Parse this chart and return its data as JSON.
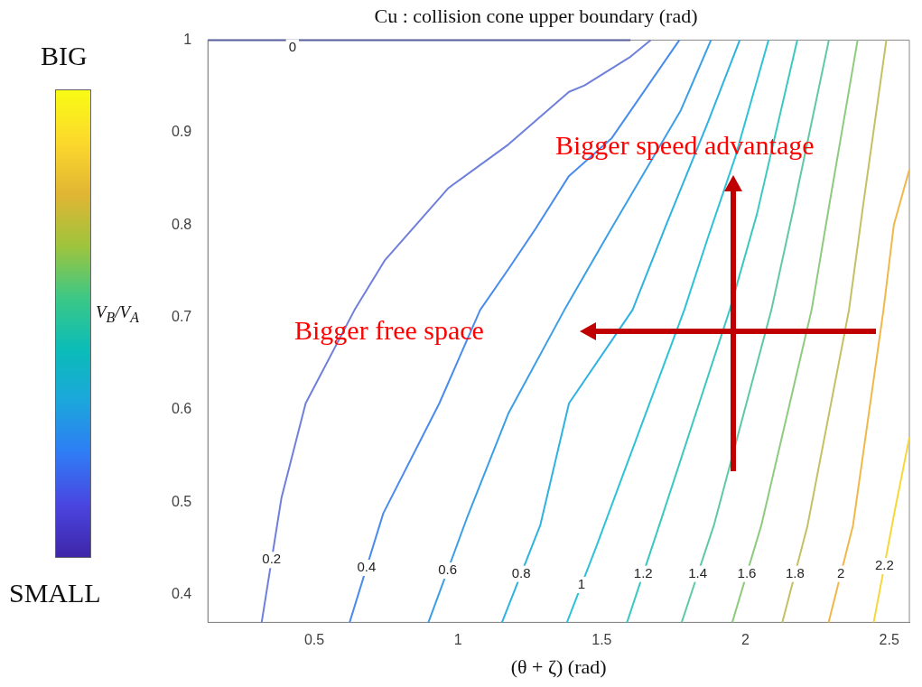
{
  "chart_data": {
    "type": "line",
    "title": "Cu : collision cone upper boundary (rad)",
    "xlabel": "(θ + ζ) (rad)",
    "clabel": "V$_{B}$/V$_{A}$",
    "annotations": [
      "BIG",
      "SMALL",
      "Bigger speed advantage",
      "Bigger free space"
    ],
    "xlim": [
      0.13,
      2.57
    ],
    "ylim": [
      0.37,
      1
    ],
    "xticks": [
      0.5,
      1,
      1.5,
      2,
      2.5
    ],
    "yticks": [
      0.4,
      0.5,
      0.6,
      0.7,
      0.8,
      0.9,
      1
    ],
    "series": [
      {
        "name": "0",
        "color": "#5a5f9e",
        "x": [
          0.13,
          1.6
        ],
        "values": [
          1,
          1
        ]
      },
      {
        "name": "0.2",
        "color": "#6f7fdc",
        "x": [
          0.317,
          0.386,
          0.47,
          0.64,
          0.746,
          0.967,
          1.175,
          1.386,
          1.44,
          1.6,
          1.67
        ],
        "values": [
          0.37,
          0.505,
          0.607,
          0.708,
          0.762,
          0.84,
          0.887,
          0.944,
          0.951,
          0.982,
          1
        ]
      },
      {
        "name": "0.4",
        "color": "#4a8cec",
        "x": [
          0.623,
          0.74,
          0.935,
          1.077,
          1.175,
          1.27,
          1.386,
          1.535,
          1.77
        ],
        "values": [
          0.37,
          0.488,
          0.607,
          0.708,
          0.752,
          0.796,
          0.853,
          0.894,
          1
        ]
      },
      {
        "name": "0.6",
        "color": "#3c9fe6",
        "x": [
          0.897,
          1.03,
          1.175,
          1.37,
          1.535,
          1.775,
          1.88
        ],
        "values": [
          0.37,
          0.482,
          0.596,
          0.708,
          0.797,
          0.924,
          1
        ]
      },
      {
        "name": "0.8",
        "color": "#2fb2e0",
        "x": [
          1.153,
          1.286,
          1.386,
          1.607,
          1.724,
          1.869,
          1.98
        ],
        "values": [
          0.37,
          0.475,
          0.607,
          0.708,
          0.8,
          0.911,
          1
        ]
      },
      {
        "name": "1",
        "color": "#2ec2d6",
        "x": [
          1.379,
          1.48,
          1.585,
          1.787,
          1.869,
          1.964,
          2.08
        ],
        "values": [
          0.37,
          0.451,
          0.539,
          0.708,
          0.786,
          0.873,
          1
        ]
      },
      {
        "name": "1.2",
        "color": "#3cc8c0",
        "x": [
          1.588,
          1.7,
          1.945,
          2.04,
          2.18
        ],
        "values": [
          0.37,
          0.475,
          0.708,
          0.812,
          1
        ]
      },
      {
        "name": "1.4",
        "color": "#5ec9a2",
        "x": [
          1.778,
          1.89,
          2.09,
          2.166,
          2.29
        ],
        "values": [
          0.37,
          0.475,
          0.708,
          0.816,
          1
        ]
      },
      {
        "name": "1.6",
        "color": "#8ecb80",
        "x": [
          1.954,
          2.055,
          2.23,
          2.29,
          2.39
        ],
        "values": [
          0.37,
          0.475,
          0.708,
          0.819,
          1
        ]
      },
      {
        "name": "1.8",
        "color": "#c4c064",
        "x": [
          2.128,
          2.216,
          2.36,
          2.41,
          2.49
        ],
        "values": [
          0.37,
          0.475,
          0.708,
          0.823,
          1
        ]
      },
      {
        "name": "2",
        "color": "#f0b84a",
        "x": [
          2.289,
          2.374,
          2.48,
          2.516,
          2.57
        ],
        "values": [
          0.37,
          0.475,
          0.708,
          0.8,
          0.86
        ]
      },
      {
        "name": "2.2",
        "color": "#f6d83a",
        "x": [
          2.446,
          2.52,
          2.57
        ],
        "values": [
          0.37,
          0.492,
          0.57
        ]
      }
    ]
  }
}
